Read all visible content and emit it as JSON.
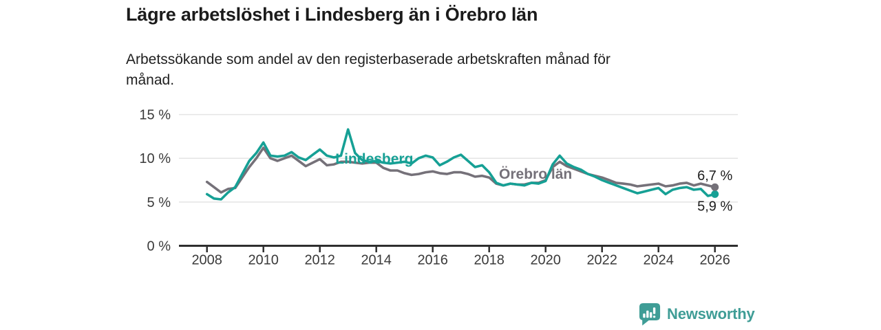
{
  "header": {
    "title": "Lägre arbetslöshet i Lindesberg än i Örebro län",
    "subtitle": "Arbetssökande som andel av den registerbaserade arbetskraften månad för\nmånad."
  },
  "colors": {
    "lindesberg": "#16A095",
    "orebro": "#757179",
    "brand": "#3F9D96",
    "grid": "#E4E4E4",
    "axis": "#2E2E2E",
    "title": "#1B1B1B",
    "tick_text": "#3A3A3A",
    "end_label_text": "#1C1C1C"
  },
  "footer": {
    "brand": "Newsworthy",
    "brand_icon": "bar-chart-speech-bubble-icon"
  },
  "chart_data": {
    "type": "line",
    "title": "Lägre arbetslöshet i Lindesberg än i Örebro län",
    "subtitle": "Arbetssökande som andel av den registerbaserade arbetskraften månad för månad.",
    "xlabel": "",
    "ylabel": "",
    "grid": true,
    "legend": "inline-labels",
    "ylim": [
      0,
      15
    ],
    "xlim": [
      2007,
      2026.8
    ],
    "yticks": [
      {
        "value": 0,
        "label": "0 %"
      },
      {
        "value": 5,
        "label": "5 %"
      },
      {
        "value": 10,
        "label": "10 %"
      },
      {
        "value": 15,
        "label": "15 %"
      }
    ],
    "xticks": [
      {
        "value": 2008,
        "label": "2008"
      },
      {
        "value": 2010,
        "label": "2010"
      },
      {
        "value": 2012,
        "label": "2012"
      },
      {
        "value": 2014,
        "label": "2014"
      },
      {
        "value": 2016,
        "label": "2016"
      },
      {
        "value": 2018,
        "label": "2018"
      },
      {
        "value": 2020,
        "label": "2020"
      },
      {
        "value": 2022,
        "label": "2022"
      },
      {
        "value": 2024,
        "label": "2024"
      },
      {
        "value": 2026,
        "label": "2026"
      }
    ],
    "x": [
      2008,
      2008.25,
      2008.5,
      2008.75,
      2009,
      2009.25,
      2009.5,
      2009.75,
      2010,
      2010.25,
      2010.5,
      2010.75,
      2011,
      2011.25,
      2011.5,
      2011.75,
      2012,
      2012.25,
      2012.5,
      2012.75,
      2013,
      2013.25,
      2013.5,
      2013.75,
      2014,
      2014.25,
      2014.5,
      2014.75,
      2015,
      2015.25,
      2015.5,
      2015.75,
      2016,
      2016.25,
      2016.5,
      2016.75,
      2017,
      2017.25,
      2017.5,
      2017.75,
      2018,
      2018.25,
      2018.5,
      2018.75,
      2019,
      2019.25,
      2019.5,
      2019.75,
      2020,
      2020.25,
      2020.5,
      2020.75,
      2021,
      2021.25,
      2021.5,
      2021.75,
      2022,
      2022.25,
      2022.5,
      2022.75,
      2023,
      2023.25,
      2023.5,
      2023.75,
      2024,
      2024.25,
      2024.5,
      2024.75,
      2025,
      2025.25,
      2025.5,
      2025.75,
      2026
    ],
    "series": [
      {
        "name": "Lindesberg",
        "color": "#16A095",
        "values": [
          5.9,
          5.4,
          5.3,
          6.1,
          6.7,
          8.2,
          9.7,
          10.6,
          11.8,
          10.3,
          10.2,
          10.3,
          10.7,
          10.1,
          9.8,
          10.4,
          11.0,
          10.3,
          10.1,
          10.3,
          13.3,
          10.6,
          9.8,
          9.6,
          9.7,
          9.5,
          9.4,
          9.5,
          9.6,
          9.4,
          10.0,
          10.3,
          10.1,
          9.2,
          9.6,
          10.1,
          10.4,
          9.7,
          9.0,
          9.2,
          8.4,
          7.2,
          6.9,
          7.1,
          7.0,
          6.9,
          7.2,
          7.1,
          7.4,
          9.3,
          10.3,
          9.4,
          9.0,
          8.7,
          8.2,
          7.9,
          7.5,
          7.2,
          6.9,
          6.6,
          6.3,
          6.0,
          6.2,
          6.4,
          6.6,
          5.9,
          6.4,
          6.6,
          6.7,
          6.4,
          6.5,
          5.7,
          5.9
        ]
      },
      {
        "name": "Örebro län",
        "color": "#757179",
        "values": [
          7.3,
          6.7,
          6.1,
          6.5,
          6.6,
          7.8,
          9.0,
          10.0,
          11.2,
          10.0,
          9.7,
          10.0,
          10.3,
          9.7,
          9.1,
          9.5,
          9.9,
          9.2,
          9.3,
          9.6,
          9.6,
          9.5,
          9.4,
          9.5,
          9.5,
          8.9,
          8.6,
          8.6,
          8.3,
          8.1,
          8.2,
          8.4,
          8.5,
          8.3,
          8.2,
          8.4,
          8.4,
          8.2,
          7.9,
          8.0,
          7.8,
          7.1,
          6.9,
          7.1,
          7.0,
          7.0,
          7.2,
          7.2,
          7.5,
          9.0,
          9.6,
          9.1,
          8.8,
          8.5,
          8.2,
          8.0,
          7.8,
          7.5,
          7.2,
          7.1,
          7.0,
          6.8,
          6.9,
          7.0,
          7.1,
          6.8,
          6.9,
          7.1,
          7.2,
          6.9,
          7.1,
          6.9,
          6.7
        ]
      }
    ],
    "annotations": [
      {
        "text": "Lindesberg",
        "x": 2012.55,
        "y": 9.4,
        "color": "#16A095"
      },
      {
        "text": "Örebro län",
        "x": 2018.35,
        "y": 7.65,
        "color": "#757179"
      }
    ],
    "end_labels": [
      {
        "series": "Örebro län",
        "text": "6,7 %",
        "value": 6.7,
        "position": "above"
      },
      {
        "series": "Lindesberg",
        "text": "5,9 %",
        "value": 5.9,
        "position": "below"
      }
    ]
  }
}
